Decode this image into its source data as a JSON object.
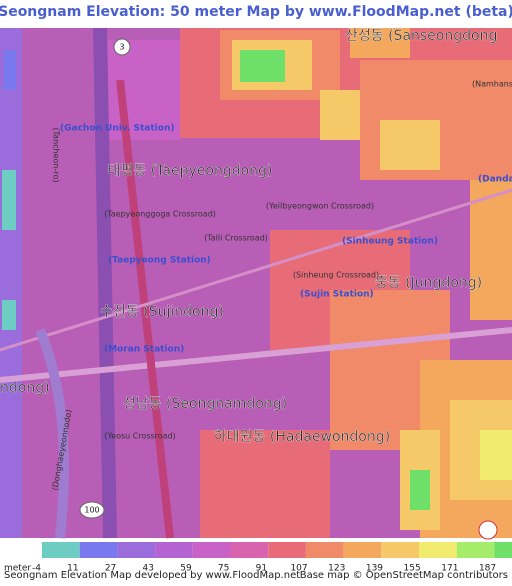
{
  "header": {
    "title": "Seongnam Elevation: 50 meter Map by www.FloodMap.net (beta)"
  },
  "map": {
    "labels": [
      {
        "text": "산성동 (Sanseongdong",
        "kind": "district"
      },
      {
        "text": "태평동 (Taepyeongdong)",
        "kind": "district"
      },
      {
        "text": "수진동 (Sujindong)",
        "kind": "district"
      },
      {
        "text": "성남동 (Seongnamdong)",
        "kind": "district"
      },
      {
        "text": "하대원동 (Hadaewondong)",
        "kind": "district"
      },
      {
        "text": "중동 (Jungdong)",
        "kind": "district"
      },
      {
        "text": "ndong)",
        "kind": "district"
      },
      {
        "text": "(Gachon Univ. Station)",
        "kind": "station"
      },
      {
        "text": "(Taepyeong Station)",
        "kind": "station"
      },
      {
        "text": "(Sinheung Station)",
        "kind": "station"
      },
      {
        "text": "(Sujin Station)",
        "kind": "station"
      },
      {
        "text": "(Moran Station)",
        "kind": "station"
      },
      {
        "text": "(Dandaeogeo",
        "kind": "station"
      },
      {
        "text": "(Namhansa",
        "kind": "small"
      },
      {
        "text": "(Taepyeonggoga Crossroad)",
        "kind": "small"
      },
      {
        "text": "(Yeilbyeongwon Crossroad)",
        "kind": "small"
      },
      {
        "text": "(Talli Crossroad)",
        "kind": "small"
      },
      {
        "text": "(Sinheung Crossroad)",
        "kind": "small"
      },
      {
        "text": "(Yeosu Crossroad)",
        "kind": "small"
      },
      {
        "text": "(Tancheon-ro)",
        "kind": "small"
      },
      {
        "text": "(Donghaeyeonnodo)",
        "kind": "small"
      },
      {
        "text": "100",
        "kind": "shield"
      },
      {
        "text": "3",
        "kind": "shield"
      }
    ]
  },
  "legend": {
    "unit": "meter",
    "values": [
      -4,
      11,
      27,
      43,
      59,
      75,
      91,
      107,
      123,
      139,
      155,
      171,
      187
    ],
    "colors": [
      "#6ecdc3",
      "#7a78ee",
      "#9b6cdc",
      "#b463d2",
      "#c962c6",
      "#d864b0",
      "#e86c78",
      "#f08a68",
      "#f3a85e",
      "#f5c968",
      "#f2ec6e",
      "#a5ec6a",
      "#6ee06a"
    ]
  },
  "footer": {
    "left": "Seongnam Elevation Map developed by www.FloodMap.net",
    "right": "Base map © OpenStreetMap contributors"
  }
}
